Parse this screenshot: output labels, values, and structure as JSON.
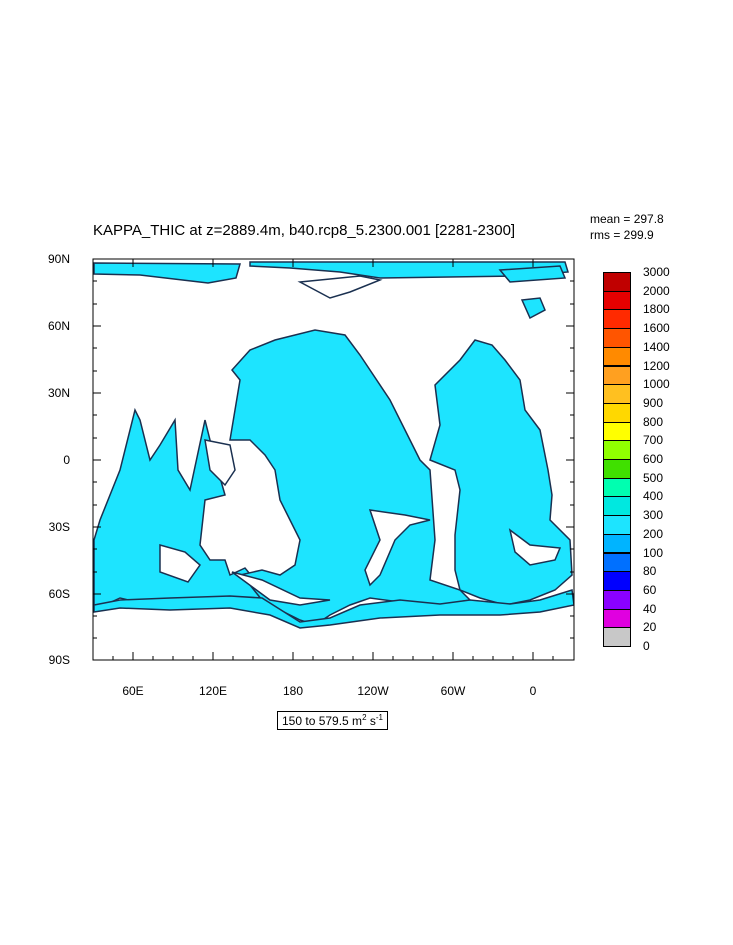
{
  "title": "KAPPA_THIC at z=2889.4m, b40.rcp8_5.2300.001 [2281-2300]",
  "stats": {
    "mean": "mean = 297.8",
    "rms": "rms = 299.9"
  },
  "axes": {
    "lat_labels": [
      "90N",
      "60N",
      "30N",
      "0",
      "30S",
      "60S",
      "90S"
    ],
    "lon_labels": [
      "60E",
      "120E",
      "180",
      "120W",
      "60W",
      "0"
    ]
  },
  "range": {
    "text": "150 to 579.5 m",
    "sup1": "2",
    "mid": " s",
    "sup2": "-1"
  },
  "colorbar": {
    "levels": [
      "3000",
      "2000",
      "1800",
      "1600",
      "1400",
      "1200",
      "1000",
      "900",
      "800",
      "700",
      "600",
      "500",
      "400",
      "300",
      "200",
      "100",
      "80",
      "60",
      "40",
      "20",
      "0"
    ],
    "colors": [
      "#c00000",
      "#e60000",
      "#ff2a00",
      "#ff5500",
      "#ff8a00",
      "#ffa020",
      "#ffc020",
      "#ffd800",
      "#ffff00",
      "#90ff00",
      "#40e000",
      "#00ffb0",
      "#00e8e0",
      "#1de4ff",
      "#00b4ff",
      "#0070ff",
      "#0000ff",
      "#8a00ff",
      "#e000e0",
      "#c8c8c8",
      "#707070"
    ]
  },
  "map_fill_color": "#1de4ff",
  "coast_color": "#1a3050"
}
